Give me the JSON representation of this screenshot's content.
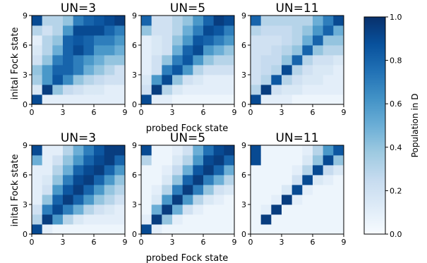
{
  "figure": {
    "row_ylabel": "inital Fock state",
    "col_xlabel": "probed Fock state"
  },
  "colorbar": {
    "label": "Population in D",
    "range": [
      0.0,
      1.0
    ],
    "ticks": [
      "0.0",
      "0.2",
      "0.4",
      "0.6",
      "0.8",
      "1.0"
    ],
    "cmap": [
      "#f7fbff",
      "#deebf7",
      "#c6dbef",
      "#9ecae1",
      "#6baed6",
      "#4292c6",
      "#2171b5",
      "#08519c",
      "#08306b"
    ]
  },
  "chart_data": [
    {
      "type": "heatmap",
      "title": "UN=3",
      "row": 1,
      "xlabel": "",
      "ylabel": "inital Fock state",
      "xticks": [
        "0",
        "3",
        "6",
        "9"
      ],
      "yticks": [
        "0",
        "3",
        "6",
        "9"
      ],
      "xlim": [
        0,
        9
      ],
      "ylim": [
        0,
        9
      ],
      "y_axis": "initial Fock state (row 0 at bottom)",
      "x_axis": "probed Fock state",
      "values": [
        [
          0.9,
          0.1,
          0.1,
          0.1,
          0.1,
          0.1,
          0.1,
          0.1,
          0.1
        ],
        [
          0.15,
          0.95,
          0.4,
          0.25,
          0.2,
          0.15,
          0.15,
          0.1,
          0.1
        ],
        [
          0.35,
          0.6,
          0.85,
          0.65,
          0.4,
          0.3,
          0.25,
          0.2,
          0.2
        ],
        [
          0.4,
          0.6,
          0.8,
          0.8,
          0.7,
          0.5,
          0.4,
          0.3,
          0.2
        ],
        [
          0.2,
          0.4,
          0.7,
          0.8,
          0.7,
          0.6,
          0.5,
          0.4,
          0.4
        ],
        [
          0.15,
          0.3,
          0.5,
          0.8,
          0.9,
          0.8,
          0.6,
          0.6,
          0.5
        ],
        [
          0.1,
          0.3,
          0.4,
          0.8,
          0.85,
          0.8,
          0.7,
          0.7,
          0.6
        ],
        [
          0.3,
          0.2,
          0.3,
          0.6,
          0.9,
          0.9,
          0.9,
          0.8,
          0.7
        ],
        [
          0.9,
          0.3,
          0.3,
          0.4,
          0.7,
          0.8,
          0.85,
          0.9,
          0.95
        ]
      ]
    },
    {
      "type": "heatmap",
      "title": "UN=5",
      "row": 1,
      "xlabel": "",
      "ylabel": "",
      "xticks": [
        "0",
        "3",
        "6",
        "9"
      ],
      "yticks": [
        "0",
        "3",
        "6",
        "9"
      ],
      "xlim": [
        0,
        9
      ],
      "ylim": [
        0,
        9
      ],
      "values": [
        [
          0.9,
          0.1,
          0.1,
          0.05,
          0.05,
          0.05,
          0.05,
          0.05,
          0.05
        ],
        [
          0.2,
          0.95,
          0.3,
          0.15,
          0.1,
          0.1,
          0.1,
          0.1,
          0.1
        ],
        [
          0.15,
          0.6,
          0.9,
          0.4,
          0.2,
          0.15,
          0.1,
          0.1,
          0.1
        ],
        [
          0.1,
          0.2,
          0.7,
          0.85,
          0.6,
          0.3,
          0.2,
          0.2,
          0.2
        ],
        [
          0.1,
          0.2,
          0.4,
          0.7,
          0.85,
          0.6,
          0.4,
          0.3,
          0.3
        ],
        [
          0.1,
          0.15,
          0.2,
          0.5,
          0.8,
          0.9,
          0.6,
          0.5,
          0.4
        ],
        [
          0.1,
          0.15,
          0.2,
          0.4,
          0.6,
          0.85,
          0.8,
          0.7,
          0.6
        ],
        [
          0.4,
          0.2,
          0.2,
          0.3,
          0.5,
          0.7,
          0.9,
          0.85,
          0.7
        ],
        [
          0.8,
          0.2,
          0.2,
          0.3,
          0.4,
          0.6,
          0.8,
          0.95,
          0.9
        ]
      ]
    },
    {
      "type": "heatmap",
      "title": "UN=11",
      "row": 1,
      "xlabel": "",
      "ylabel": "",
      "xticks": [
        "0",
        "3",
        "6",
        "9"
      ],
      "yticks": [
        "0",
        "3",
        "6",
        "9"
      ],
      "xlim": [
        0,
        9
      ],
      "ylim": [
        0,
        9
      ],
      "values": [
        [
          0.9,
          0.1,
          0.1,
          0.1,
          0.05,
          0.05,
          0.05,
          0.05,
          0.05
        ],
        [
          0.3,
          0.95,
          0.2,
          0.15,
          0.15,
          0.1,
          0.1,
          0.1,
          0.1
        ],
        [
          0.2,
          0.3,
          0.85,
          0.3,
          0.2,
          0.15,
          0.15,
          0.1,
          0.1
        ],
        [
          0.2,
          0.25,
          0.3,
          0.9,
          0.3,
          0.2,
          0.15,
          0.15,
          0.1
        ],
        [
          0.2,
          0.25,
          0.25,
          0.4,
          0.8,
          0.3,
          0.2,
          0.2,
          0.15
        ],
        [
          0.2,
          0.2,
          0.25,
          0.3,
          0.4,
          0.8,
          0.4,
          0.3,
          0.3
        ],
        [
          0.2,
          0.2,
          0.2,
          0.25,
          0.3,
          0.5,
          0.8,
          0.4,
          0.4
        ],
        [
          0.3,
          0.25,
          0.25,
          0.25,
          0.3,
          0.4,
          0.6,
          0.8,
          0.5
        ],
        [
          0.8,
          0.3,
          0.3,
          0.3,
          0.3,
          0.3,
          0.5,
          0.7,
          0.9
        ]
      ]
    },
    {
      "type": "heatmap",
      "title": "UN=3",
      "row": 2,
      "xlabel": "probed Fock state",
      "ylabel": "inital Fock state",
      "xticks": [
        "0",
        "3",
        "6",
        "9"
      ],
      "yticks": [
        "0",
        "3",
        "6",
        "9"
      ],
      "xlim": [
        0,
        9
      ],
      "ylim": [
        0,
        9
      ],
      "values": [
        [
          0.9,
          0.1,
          0.05,
          0.05,
          0.05,
          0.05,
          0.05,
          0.05,
          0.05
        ],
        [
          0.3,
          0.95,
          0.6,
          0.3,
          0.15,
          0.1,
          0.1,
          0.1,
          0.1
        ],
        [
          0.2,
          0.7,
          0.9,
          0.7,
          0.5,
          0.3,
          0.2,
          0.15,
          0.1
        ],
        [
          0.1,
          0.4,
          0.8,
          0.95,
          0.8,
          0.6,
          0.4,
          0.3,
          0.2
        ],
        [
          0.1,
          0.2,
          0.6,
          0.85,
          0.95,
          0.8,
          0.6,
          0.4,
          0.3
        ],
        [
          0.1,
          0.15,
          0.4,
          0.7,
          0.9,
          0.95,
          0.8,
          0.6,
          0.4
        ],
        [
          0.1,
          0.1,
          0.3,
          0.5,
          0.8,
          0.9,
          0.95,
          0.8,
          0.6
        ],
        [
          0.5,
          0.1,
          0.2,
          0.4,
          0.6,
          0.8,
          0.9,
          0.95,
          0.8
        ],
        [
          0.9,
          0.1,
          0.1,
          0.3,
          0.5,
          0.7,
          0.85,
          0.95,
          0.95
        ]
      ]
    },
    {
      "type": "heatmap",
      "title": "UN=5",
      "row": 2,
      "xlabel": "probed Fock state",
      "ylabel": "",
      "xticks": [
        "0",
        "3",
        "6",
        "9"
      ],
      "yticks": [
        "0",
        "3",
        "6",
        "9"
      ],
      "xlim": [
        0,
        9
      ],
      "ylim": [
        0,
        9
      ],
      "values": [
        [
          0.9,
          0.1,
          0.05,
          0.05,
          0.05,
          0.05,
          0.05,
          0.05,
          0.05
        ],
        [
          0.1,
          0.95,
          0.4,
          0.1,
          0.05,
          0.05,
          0.05,
          0.05,
          0.05
        ],
        [
          0.05,
          0.5,
          0.95,
          0.5,
          0.2,
          0.1,
          0.05,
          0.05,
          0.05
        ],
        [
          0.05,
          0.15,
          0.6,
          0.95,
          0.6,
          0.3,
          0.15,
          0.1,
          0.05
        ],
        [
          0.05,
          0.1,
          0.3,
          0.7,
          0.95,
          0.7,
          0.4,
          0.2,
          0.15
        ],
        [
          0.05,
          0.05,
          0.15,
          0.4,
          0.8,
          0.95,
          0.7,
          0.5,
          0.3
        ],
        [
          0.05,
          0.05,
          0.1,
          0.25,
          0.5,
          0.85,
          0.95,
          0.8,
          0.5
        ],
        [
          0.3,
          0.05,
          0.05,
          0.15,
          0.3,
          0.6,
          0.9,
          0.95,
          0.8
        ],
        [
          0.9,
          0.05,
          0.05,
          0.1,
          0.2,
          0.5,
          0.75,
          0.9,
          0.95
        ]
      ]
    },
    {
      "type": "heatmap",
      "title": "UN=11",
      "row": 2,
      "xlabel": "",
      "ylabel": "",
      "xticks": [
        "0",
        "3",
        "6",
        "9"
      ],
      "yticks": [
        "0",
        "3",
        "6",
        "9"
      ],
      "xlim": [
        0,
        9
      ],
      "ylim": [
        0,
        9
      ],
      "values": [
        [
          0.05,
          0.05,
          0.05,
          0.05,
          0.05,
          0.05,
          0.05,
          0.05,
          0.05
        ],
        [
          0.05,
          0.95,
          0.05,
          0.05,
          0.05,
          0.05,
          0.05,
          0.05,
          0.05
        ],
        [
          0.05,
          0.1,
          0.95,
          0.05,
          0.05,
          0.05,
          0.05,
          0.05,
          0.05
        ],
        [
          0.05,
          0.05,
          0.1,
          0.95,
          0.1,
          0.05,
          0.05,
          0.05,
          0.05
        ],
        [
          0.05,
          0.05,
          0.05,
          0.15,
          0.9,
          0.1,
          0.05,
          0.05,
          0.05
        ],
        [
          0.05,
          0.05,
          0.05,
          0.05,
          0.2,
          0.9,
          0.15,
          0.1,
          0.05
        ],
        [
          0.05,
          0.05,
          0.05,
          0.05,
          0.1,
          0.3,
          0.9,
          0.25,
          0.15
        ],
        [
          0.9,
          0.05,
          0.05,
          0.05,
          0.05,
          0.15,
          0.4,
          0.9,
          0.4
        ],
        [
          0.9,
          0.05,
          0.05,
          0.05,
          0.05,
          0.1,
          0.3,
          0.6,
          0.85
        ]
      ]
    }
  ]
}
